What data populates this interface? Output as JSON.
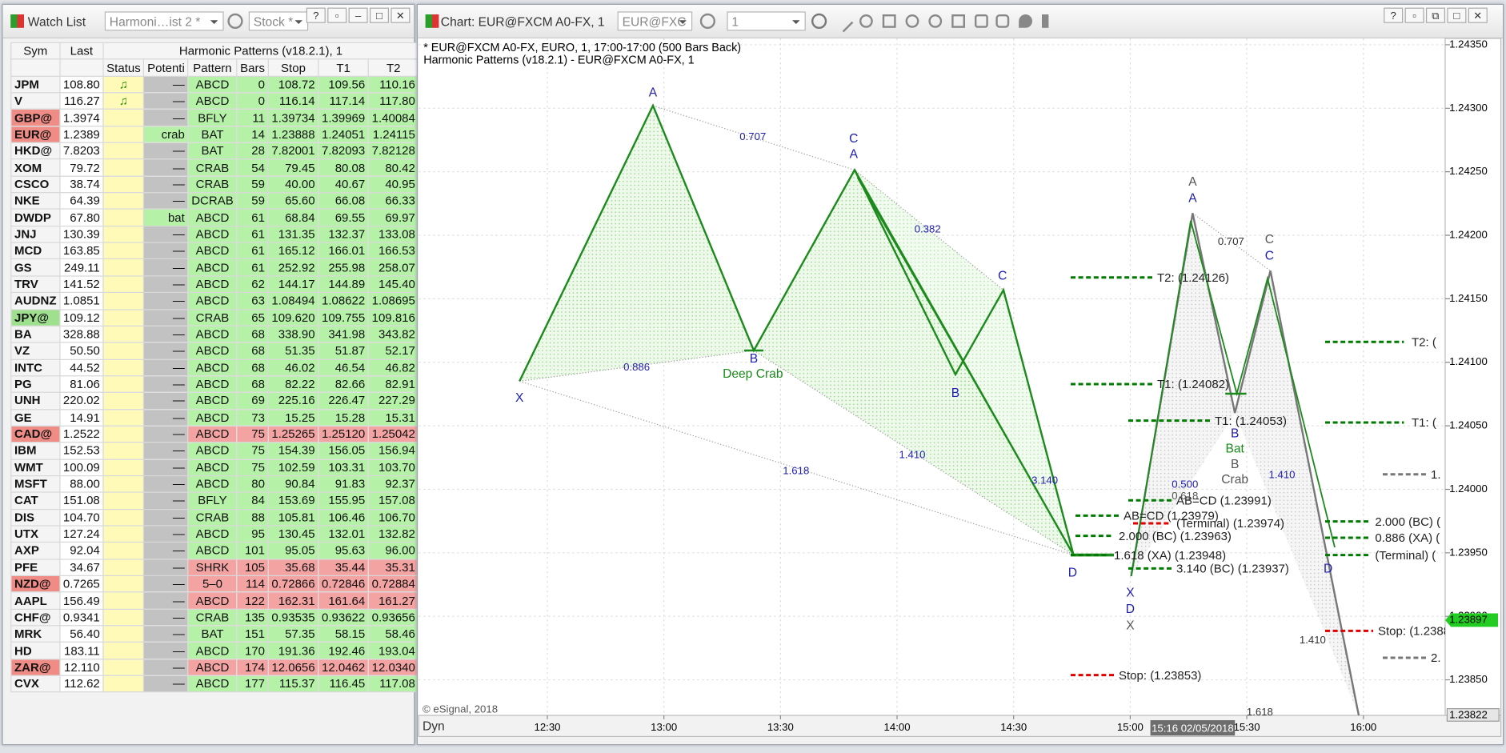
{
  "watchlist": {
    "title": "Watch List",
    "layout_box": "Harmoni…ist 2 *",
    "symbol_box": "Stock *",
    "headers": {
      "top": [
        "Sym",
        "Last",
        "Harmonic Patterns (v18.2.1), 1"
      ],
      "sub": [
        "Status",
        "Potenti",
        "Pattern",
        "Bars",
        "Stop",
        "T1",
        "T2"
      ]
    },
    "rows": [
      {
        "cells": [
          "JPM",
          "108.80",
          "♫",
          "—",
          "ABCD",
          "0",
          "108.72",
          "109.56",
          "110.16"
        ],
        "bg": "#b5f2a8"
      },
      {
        "cells": [
          "V",
          "116.27",
          "♫",
          "—",
          "ABCD",
          "0",
          "116.14",
          "117.14",
          "117.80"
        ],
        "bg": "#b5f2a8"
      },
      {
        "cells": [
          "GBP@",
          "1.3974",
          "",
          "—",
          "BFLY",
          "11",
          "1.39734",
          "1.39969",
          "1.40084"
        ],
        "bg": "#b5f2a8",
        "sym_bg": "#f08c86"
      },
      {
        "cells": [
          "EUR@",
          "1.2389",
          "",
          "crab",
          "BAT",
          "14",
          "1.23888",
          "1.24051",
          "1.24115"
        ],
        "bg": "#b5f2a8",
        "sym_bg": "#f08c86",
        "potential_bg": "#b5f2a8"
      },
      {
        "cells": [
          "HKD@",
          "7.8203",
          "",
          "—",
          "BAT",
          "28",
          "7.82001",
          "7.82093",
          "7.82128"
        ],
        "bg": "#b5f2a8"
      },
      {
        "cells": [
          "XOM",
          "79.72",
          "",
          "—",
          "CRAB",
          "54",
          "79.45",
          "80.08",
          "80.42"
        ],
        "bg": "#b5f2a8"
      },
      {
        "cells": [
          "CSCO",
          "38.74",
          "",
          "—",
          "CRAB",
          "59",
          "40.00",
          "40.67",
          "40.95"
        ],
        "bg": "#b5f2a8"
      },
      {
        "cells": [
          "NKE",
          "64.39",
          "",
          "—",
          "DCRAB",
          "59",
          "65.60",
          "66.08",
          "66.33"
        ],
        "bg": "#b5f2a8"
      },
      {
        "cells": [
          "DWDP",
          "67.80",
          "",
          "bat",
          "ABCD",
          "61",
          "68.84",
          "69.55",
          "69.97"
        ],
        "bg": "#b5f2a8",
        "potential_bg": "#b5f2a8"
      },
      {
        "cells": [
          "JNJ",
          "130.39",
          "",
          "—",
          "ABCD",
          "61",
          "131.35",
          "132.37",
          "133.08"
        ],
        "bg": "#b5f2a8"
      },
      {
        "cells": [
          "MCD",
          "163.85",
          "",
          "—",
          "ABCD",
          "61",
          "165.12",
          "166.01",
          "166.53"
        ],
        "bg": "#b5f2a8"
      },
      {
        "cells": [
          "GS",
          "249.11",
          "",
          "—",
          "ABCD",
          "61",
          "252.92",
          "255.98",
          "258.07"
        ],
        "bg": "#b5f2a8"
      },
      {
        "cells": [
          "TRV",
          "141.52",
          "",
          "—",
          "ABCD",
          "62",
          "144.17",
          "144.89",
          "145.40"
        ],
        "bg": "#b5f2a8"
      },
      {
        "cells": [
          "AUDNZ",
          "1.0851",
          "",
          "—",
          "ABCD",
          "63",
          "1.08494",
          "1.08622",
          "1.08695"
        ],
        "bg": "#b5f2a8"
      },
      {
        "cells": [
          "JPY@",
          "109.12",
          "",
          "—",
          "CRAB",
          "65",
          "109.620",
          "109.755",
          "109.816"
        ],
        "bg": "#b5f2a8",
        "sym_bg": "#9fe08f"
      },
      {
        "cells": [
          "BA",
          "328.88",
          "",
          "—",
          "ABCD",
          "68",
          "338.90",
          "341.98",
          "343.82"
        ],
        "bg": "#b5f2a8"
      },
      {
        "cells": [
          "VZ",
          "50.50",
          "",
          "—",
          "ABCD",
          "68",
          "51.35",
          "51.87",
          "52.17"
        ],
        "bg": "#b5f2a8"
      },
      {
        "cells": [
          "INTC",
          "44.52",
          "",
          "—",
          "ABCD",
          "68",
          "46.02",
          "46.54",
          "46.82"
        ],
        "bg": "#b5f2a8"
      },
      {
        "cells": [
          "PG",
          "81.06",
          "",
          "—",
          "ABCD",
          "68",
          "82.22",
          "82.66",
          "82.91"
        ],
        "bg": "#b5f2a8"
      },
      {
        "cells": [
          "UNH",
          "220.02",
          "",
          "—",
          "ABCD",
          "69",
          "225.16",
          "226.47",
          "227.29"
        ],
        "bg": "#b5f2a8"
      },
      {
        "cells": [
          "GE",
          "14.91",
          "",
          "—",
          "ABCD",
          "73",
          "15.25",
          "15.28",
          "15.31"
        ],
        "bg": "#b5f2a8"
      },
      {
        "cells": [
          "CAD@",
          "1.2522",
          "",
          "—",
          "ABCD",
          "75",
          "1.25265",
          "1.25120",
          "1.25042"
        ],
        "bg": "#f4a3a3",
        "sym_bg": "#f08c86"
      },
      {
        "cells": [
          "IBM",
          "152.53",
          "",
          "—",
          "ABCD",
          "75",
          "154.39",
          "156.05",
          "156.94"
        ],
        "bg": "#b5f2a8"
      },
      {
        "cells": [
          "WMT",
          "100.09",
          "",
          "—",
          "ABCD",
          "75",
          "102.59",
          "103.31",
          "103.70"
        ],
        "bg": "#b5f2a8"
      },
      {
        "cells": [
          "MSFT",
          "88.00",
          "",
          "—",
          "ABCD",
          "80",
          "90.84",
          "91.83",
          "92.37"
        ],
        "bg": "#b5f2a8"
      },
      {
        "cells": [
          "CAT",
          "151.08",
          "",
          "—",
          "BFLY",
          "84",
          "153.69",
          "155.95",
          "157.08"
        ],
        "bg": "#b5f2a8"
      },
      {
        "cells": [
          "DIS",
          "104.70",
          "",
          "—",
          "CRAB",
          "88",
          "105.81",
          "106.46",
          "106.70"
        ],
        "bg": "#b5f2a8"
      },
      {
        "cells": [
          "UTX",
          "127.24",
          "",
          "—",
          "ABCD",
          "95",
          "130.45",
          "132.01",
          "132.82"
        ],
        "bg": "#b5f2a8"
      },
      {
        "cells": [
          "AXP",
          "92.04",
          "",
          "—",
          "ABCD",
          "101",
          "95.05",
          "95.63",
          "96.00"
        ],
        "bg": "#b5f2a8"
      },
      {
        "cells": [
          "PFE",
          "34.67",
          "",
          "—",
          "SHRK",
          "105",
          "35.68",
          "35.44",
          "35.31"
        ],
        "bg": "#f4a3a3"
      },
      {
        "cells": [
          "NZD@",
          "0.7265",
          "",
          "—",
          "5–0",
          "114",
          "0.72866",
          "0.72846",
          "0.72884"
        ],
        "bg": "#f4a3a3",
        "sym_bg": "#f08c86"
      },
      {
        "cells": [
          "AAPL",
          "156.49",
          "",
          "—",
          "ABCD",
          "122",
          "162.31",
          "161.64",
          "161.27"
        ],
        "bg": "#f4a3a3"
      },
      {
        "cells": [
          "CHF@",
          "0.9341",
          "",
          "—",
          "CRAB",
          "135",
          "0.93535",
          "0.93622",
          "0.93656"
        ],
        "bg": "#b5f2a8"
      },
      {
        "cells": [
          "MRK",
          "56.40",
          "",
          "—",
          "BAT",
          "151",
          "57.35",
          "58.15",
          "58.46"
        ],
        "bg": "#b5f2a8"
      },
      {
        "cells": [
          "HD",
          "183.11",
          "",
          "—",
          "ABCD",
          "170",
          "191.36",
          "192.46",
          "193.04"
        ],
        "bg": "#b5f2a8"
      },
      {
        "cells": [
          "ZAR@",
          "12.110",
          "",
          "—",
          "ABCD",
          "174",
          "12.0656",
          "12.0462",
          "12.0340"
        ],
        "bg": "#f4a3a3",
        "sym_bg": "#f08c86"
      },
      {
        "cells": [
          "CVX",
          "112.62",
          "",
          "—",
          "ABCD",
          "177",
          "115.37",
          "116.45",
          "117.08"
        ],
        "bg": "#b5f2a8"
      }
    ]
  },
  "chart": {
    "window_title": "Chart: EUR@FXCM A0-FX, 1",
    "symbol_box": "EUR@FXC",
    "interval_box": "1",
    "header_lines": [
      "* EUR@FXCM A0-FX, EURO, 1, 17:00-17:00 (500 Bars Back)",
      "Harmonic Patterns (v18.2.1) - EUR@FXCM A0-FX, 1"
    ],
    "copyright": "© eSignal, 2018",
    "dyn": "Dyn",
    "ylim": [
      1.23822,
      1.24355
    ],
    "price_ticks": [
      {
        "value": 1.2435,
        "label": "1.24350"
      },
      {
        "value": 1.243,
        "label": "1.24300"
      },
      {
        "value": 1.2425,
        "label": "1.24250"
      },
      {
        "value": 1.242,
        "label": "1.24200"
      },
      {
        "value": 1.2415,
        "label": "1.24150"
      },
      {
        "value": 1.241,
        "label": "1.24100"
      },
      {
        "value": 1.2405,
        "label": "1.24050"
      },
      {
        "value": 1.24,
        "label": "1.24000"
      },
      {
        "value": 1.2395,
        "label": "1.23950"
      },
      {
        "value": 1.239,
        "label": "1.23900"
      },
      {
        "value": 1.2385,
        "label": "1.23850"
      }
    ],
    "last_price": 1.23897,
    "bottom_price": 1.23822,
    "time_labels": [
      "12:30",
      "13:00",
      "13:30",
      "14:00",
      "14:30",
      "15:00",
      "15:30",
      "16:00"
    ],
    "cursor_time": "15:16 02/05/2018",
    "annotations": [
      {
        "text": "A",
        "color": "#2020b0"
      },
      {
        "text": "X",
        "color": "#2020b0"
      },
      {
        "text": "B",
        "color": "#2020b0"
      },
      {
        "text": "Deep Crab",
        "color": "#1a8a1a"
      },
      {
        "text": "C",
        "color": "#2020b0"
      },
      {
        "text": "A",
        "color": "#2020b0"
      },
      {
        "text": "B",
        "color": "#2020b0"
      },
      {
        "text": "C",
        "color": "#2020b0"
      },
      {
        "text": "D",
        "color": "#2020b0"
      },
      {
        "text": "0.707",
        "color": "#2020b0"
      },
      {
        "text": "0.382",
        "color": "#2020b0"
      },
      {
        "text": "0.886",
        "color": "#2020b0"
      },
      {
        "text": "1.618",
        "color": "#2020b0"
      },
      {
        "text": "1.410",
        "color": "#2020b0"
      },
      {
        "text": "3.140",
        "color": "#2020b0"
      },
      {
        "text": "A",
        "color": "#555555"
      },
      {
        "text": "A",
        "color": "#2020b0"
      },
      {
        "text": "0.707",
        "color": "#333333"
      },
      {
        "text": "C",
        "color": "#555555"
      },
      {
        "text": "C",
        "color": "#2020b0"
      },
      {
        "text": "B",
        "color": "#2020b0"
      },
      {
        "text": "Bat",
        "color": "#1a8a1a"
      },
      {
        "text": "B",
        "color": "#555555"
      },
      {
        "text": "Crab",
        "color": "#555555"
      },
      {
        "text": "1.410",
        "color": "#2020b0"
      },
      {
        "text": "0.500",
        "color": "#2020b0"
      },
      {
        "text": "0.618",
        "color": "#555555"
      },
      {
        "text": "X",
        "color": "#2020b0"
      },
      {
        "text": "D",
        "color": "#2020b0"
      },
      {
        "text": "X",
        "color": "#555555"
      },
      {
        "text": "D",
        "color": "#2020b0"
      },
      {
        "text": "1.410",
        "color": "#333333"
      },
      {
        "text": "1.618",
        "color": "#333333"
      }
    ],
    "levels": [
      {
        "text": "T2: (1.24126)",
        "color": "#007a00"
      },
      {
        "text": "T1: (1.24082)",
        "color": "#007a00"
      },
      {
        "text": "T1: (1.24053)",
        "color": "#007a00"
      },
      {
        "text": "AB=CD (1.23991)",
        "color": "#007a00"
      },
      {
        "text": "AB=CD (1.23979)",
        "color": "#007a00"
      },
      {
        "text": "(Terminal) (1.23974)",
        "color": "#e00000"
      },
      {
        "text": "2.000 (BC) (1.23963)",
        "color": "#007a00"
      },
      {
        "text": "1.618 (XA) (1.23948)",
        "color": "#007a00"
      },
      {
        "text": "3.140 (BC) (1.23937)",
        "color": "#007a00"
      },
      {
        "text": "Stop: (1.23853)",
        "color": "#e00000"
      },
      {
        "text": "T2: (",
        "color": "#007a00"
      },
      {
        "text": "T1: (",
        "color": "#007a00"
      },
      {
        "text": "1.",
        "color": "#777777"
      },
      {
        "text": "2.000 (BC) (",
        "color": "#007a00"
      },
      {
        "text": "0.886 (XA) (",
        "color": "#007a00"
      },
      {
        "text": "(Terminal) (",
        "color": "#007a00"
      },
      {
        "text": "Stop: (1.2388",
        "color": "#e00000"
      },
      {
        "text": "2.",
        "color": "#777777"
      }
    ]
  }
}
